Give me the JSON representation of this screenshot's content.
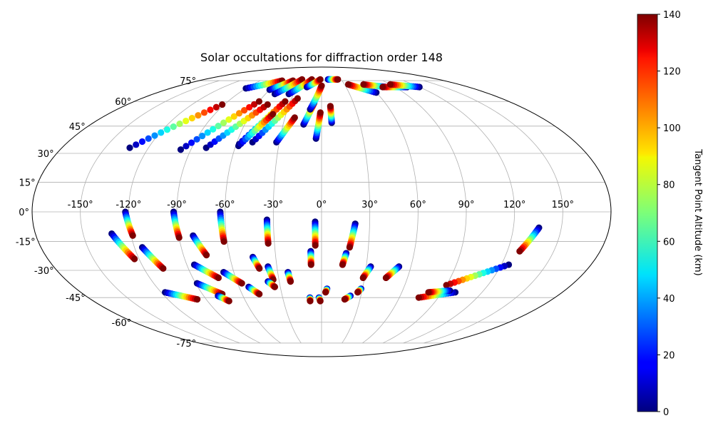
{
  "chart_data": {
    "type": "scatter",
    "projection": "mollweide",
    "title": "Solar occultations for diffraction order 148",
    "lon_ticks": [
      "-150°",
      "-120°",
      "-90°",
      "-60°",
      "-30°",
      "0°",
      "30°",
      "60°",
      "90°",
      "120°",
      "150°"
    ],
    "lat_ticks": [
      "75°",
      "60°",
      "45°",
      "30°",
      "15°",
      "0°",
      "-15°",
      "-30°",
      "-45°",
      "-60°",
      "-75°"
    ],
    "grid": true,
    "colorbar": {
      "label": "Tangent Point Altitude (km)",
      "min": 0,
      "max": 140,
      "ticks": [
        "0",
        "20",
        "40",
        "60",
        "80",
        "100",
        "120",
        "140"
      ],
      "colormap": "jet"
    },
    "series": [
      {
        "lon": [
          -133,
          -92
        ],
        "lat": [
          33,
          58
        ]
      },
      {
        "lon": [
          -97,
          -60
        ],
        "lat": [
          32,
          60
        ]
      },
      {
        "lon": [
          -80,
          -50
        ],
        "lat": [
          33,
          58
        ]
      },
      {
        "lon": [
          -58,
          -35
        ],
        "lat": [
          35,
          60
        ]
      },
      {
        "lon": [
          -58,
          -41
        ],
        "lat": [
          34,
          52
        ]
      },
      {
        "lon": [
          -49,
          -24
        ],
        "lat": [
          36,
          62
        ]
      },
      {
        "lon": [
          -32,
          -22
        ],
        "lat": [
          36,
          50
        ]
      },
      {
        "lon": [
          -14,
          -7
        ],
        "lat": [
          46,
          59
        ]
      },
      {
        "lon": [
          -10,
          0
        ],
        "lat": [
          55,
          71
        ]
      },
      {
        "lon": [
          -4,
          -1
        ],
        "lat": [
          38,
          53
        ]
      },
      {
        "lon": [
          8,
          8
        ],
        "lat": [
          47,
          57
        ]
      },
      {
        "lon": [
          -90,
          -58
        ],
        "lat": [
          69,
          75
        ]
      },
      {
        "lon": [
          -60,
          -42
        ],
        "lat": [
          68,
          75
        ]
      },
      {
        "lon": [
          -50,
          -30
        ],
        "lat": [
          65,
          76
        ]
      },
      {
        "lon": [
          -35,
          -15
        ],
        "lat": [
          65,
          76
        ]
      },
      {
        "lon": [
          -18,
          -2
        ],
        "lat": [
          70,
          76
        ]
      },
      {
        "lon": [
          10,
          25
        ],
        "lat": [
          76,
          76
        ]
      },
      {
        "lon": [
          60,
          35
        ],
        "lat": [
          66,
          72
        ]
      },
      {
        "lon": [
          80,
          55
        ],
        "lat": [
          70,
          72
        ]
      },
      {
        "lon": [
          105,
          75
        ],
        "lat": [
          70,
          70
        ]
      },
      {
        "lon": [
          120,
          90
        ],
        "lat": [
          70,
          72
        ]
      },
      {
        "lon": [
          -122,
          -119
        ],
        "lat": [
          0,
          -12
        ]
      },
      {
        "lon": [
          -132,
          -123
        ],
        "lat": [
          -11,
          -24
        ]
      },
      {
        "lon": [
          -92,
          -90
        ],
        "lat": [
          0,
          -13
        ]
      },
      {
        "lon": [
          -115,
          -107
        ],
        "lat": [
          -18,
          -29
        ]
      },
      {
        "lon": [
          -63,
          -62
        ],
        "lat": [
          0,
          -15
        ]
      },
      {
        "lon": [
          -81,
          -75
        ],
        "lat": [
          -12,
          -22
        ]
      },
      {
        "lon": [
          -34,
          -34
        ],
        "lat": [
          -4,
          -16
        ]
      },
      {
        "lon": [
          -4,
          -4
        ],
        "lat": [
          -5,
          -17
        ]
      },
      {
        "lon": [
          21,
          18
        ],
        "lat": [
          -6,
          -18
        ]
      },
      {
        "lon": [
          -7,
          -7
        ],
        "lat": [
          -20,
          -27
        ]
      },
      {
        "lon": [
          16,
          14
        ],
        "lat": [
          -21,
          -27
        ]
      },
      {
        "lon": [
          136,
          128
        ],
        "lat": [
          -8,
          -20
        ]
      },
      {
        "lon": [
          -45,
          -42
        ],
        "lat": [
          -23,
          -29
        ]
      },
      {
        "lon": [
          -36,
          -34
        ],
        "lat": [
          -28,
          -35
        ]
      },
      {
        "lon": [
          -23,
          -22
        ],
        "lat": [
          -31,
          -36
        ]
      },
      {
        "lon": [
          -85,
          -72
        ],
        "lat": [
          -27,
          -34
        ]
      },
      {
        "lon": [
          -67,
          -57
        ],
        "lat": [
          -31,
          -37
        ]
      },
      {
        "lon": [
          33,
          29
        ],
        "lat": [
          -28,
          -34
        ]
      },
      {
        "lon": [
          52,
          45
        ],
        "lat": [
          -28,
          -34
        ]
      },
      {
        "lon": [
          125,
          90
        ],
        "lat": [
          -27,
          -38
        ]
      },
      {
        "lon": [
          -89,
          -75
        ],
        "lat": [
          -37,
          -43
        ]
      },
      {
        "lon": [
          -53,
          -47
        ],
        "lat": [
          -39,
          -43
        ]
      },
      {
        "lon": [
          -38,
          -34
        ],
        "lat": [
          -36,
          -39
        ]
      },
      {
        "lon": [
          -117,
          -97
        ],
        "lat": [
          -42,
          -46
        ]
      },
      {
        "lon": [
          -79,
          -73
        ],
        "lat": [
          -44,
          -47
        ]
      },
      {
        "lon": [
          -9,
          -9
        ],
        "lat": [
          -45,
          -47
        ]
      },
      {
        "lon": [
          -2,
          -1
        ],
        "lat": [
          -45,
          -47
        ]
      },
      {
        "lon": [
          4,
          3
        ],
        "lat": [
          -40,
          -42
        ]
      },
      {
        "lon": [
          29,
          27
        ],
        "lat": [
          -40,
          -42
        ]
      },
      {
        "lon": [
          22,
          18
        ],
        "lat": [
          -44,
          -46
        ]
      },
      {
        "lon": [
          100,
          75
        ],
        "lat": [
          -42,
          -45
        ]
      },
      {
        "lon": [
          95,
          80
        ],
        "lat": [
          -41,
          -42
        ]
      }
    ]
  }
}
